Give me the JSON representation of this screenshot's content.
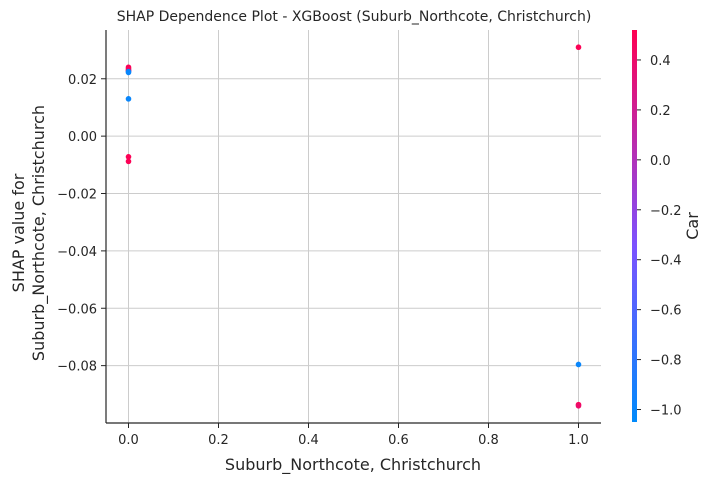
{
  "chart_data": {
    "type": "scatter",
    "title": "SHAP Dependence Plot - XGBoost (Suburb_Northcote, Christchurch)",
    "xlabel": "Suburb_Northcote, Christchurch",
    "ylabel_lines": [
      "SHAP value for",
      "Suburb_Northcote, Christchurch"
    ],
    "xlim": [
      -0.05,
      1.05
    ],
    "ylim": [
      -0.1,
      0.037
    ],
    "x_ticks": [
      0.0,
      0.2,
      0.4,
      0.6,
      0.8,
      1.0
    ],
    "x_tick_labels": [
      "0.0",
      "0.2",
      "0.4",
      "0.6",
      "0.8",
      "1.0"
    ],
    "y_ticks": [
      -0.08,
      -0.06,
      -0.04,
      -0.02,
      0.0,
      0.02
    ],
    "y_tick_labels": [
      "−0.08",
      "−0.06",
      "−0.04",
      "−0.02",
      "0.00",
      "0.02"
    ],
    "grid": true,
    "colorbar": {
      "label": "Car",
      "range": [
        -1.05,
        0.52
      ],
      "ticks": [
        0.4,
        0.2,
        0.0,
        -0.2,
        -0.4,
        -0.6,
        -0.8,
        -1.0
      ],
      "tick_labels": [
        "0.4",
        "0.2",
        "0.0",
        "−0.2",
        "−0.4",
        "−0.6",
        "−0.8",
        "−1.0"
      ],
      "color_low": "#008afb",
      "color_mid": "#7c52ff",
      "color_high": "#ff0052"
    },
    "points": [
      {
        "x": 0.0,
        "y": 0.024,
        "c": 0.5
      },
      {
        "x": 0.0,
        "y": 0.0235,
        "c": 0.5
      },
      {
        "x": 0.0,
        "y": 0.023,
        "c": 0.4
      },
      {
        "x": 0.0,
        "y": 0.0228,
        "c": 0.5
      },
      {
        "x": 0.0,
        "y": 0.0225,
        "c": -1.0
      },
      {
        "x": 0.0,
        "y": 0.0222,
        "c": -1.0
      },
      {
        "x": 0.0,
        "y": 0.013,
        "c": -1.0
      },
      {
        "x": 0.0,
        "y": -0.0072,
        "c": 0.5
      },
      {
        "x": 0.0,
        "y": -0.0088,
        "c": 0.5
      },
      {
        "x": 1.0,
        "y": 0.031,
        "c": 0.5
      },
      {
        "x": 1.0,
        "y": -0.0796,
        "c": -1.0
      },
      {
        "x": 1.0,
        "y": -0.0936,
        "c": 0.5
      },
      {
        "x": 1.0,
        "y": -0.094,
        "c": 0.4
      }
    ]
  }
}
